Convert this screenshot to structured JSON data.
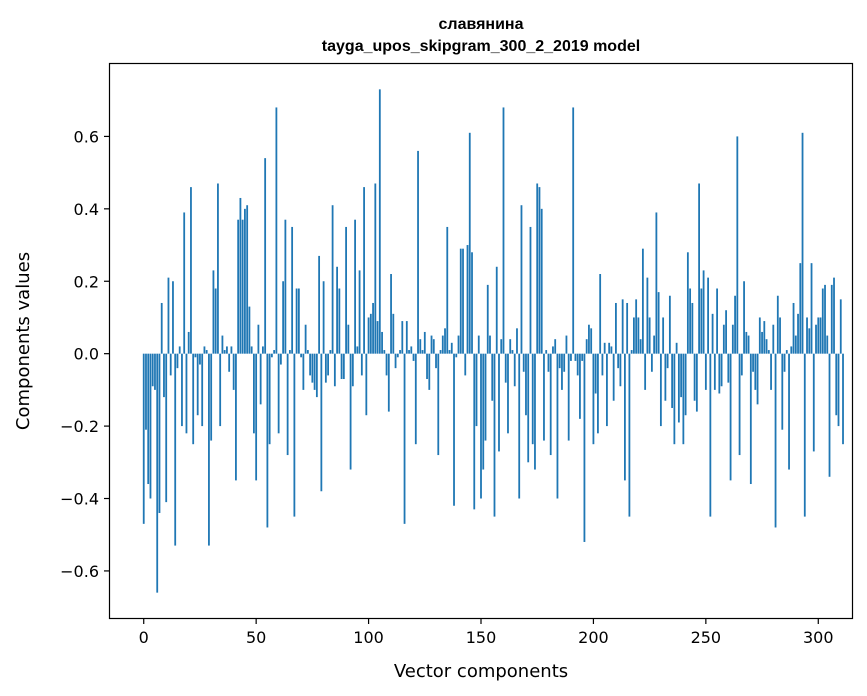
{
  "chart_data": {
    "type": "bar",
    "title_line1": "славянина",
    "title_line2": "tayga_upos_skipgram_300_2_2019 model",
    "xlabel": "Vector components",
    "ylabel": "Components values",
    "xlim": [
      -15,
      315
    ],
    "ylim": [
      -0.73,
      0.8
    ],
    "xticks": [
      0,
      50,
      100,
      150,
      200,
      250,
      300
    ],
    "xtick_labels": [
      "0",
      "50",
      "100",
      "150",
      "200",
      "250",
      "300"
    ],
    "yticks": [
      -0.6,
      -0.4,
      -0.2,
      0.0,
      0.2,
      0.4,
      0.6
    ],
    "ytick_labels": [
      "−0.6",
      "−0.4",
      "−0.2",
      "0.0",
      "0.2",
      "0.4",
      "0.6"
    ],
    "bar_color": "#1f77b4",
    "values": [
      -0.47,
      -0.21,
      -0.36,
      -0.4,
      -0.09,
      -0.1,
      -0.66,
      -0.44,
      0.14,
      -0.12,
      -0.41,
      0.21,
      -0.06,
      0.2,
      -0.53,
      -0.04,
      0.02,
      -0.2,
      0.39,
      -0.22,
      0.06,
      0.46,
      -0.25,
      -0.01,
      -0.17,
      -0.03,
      -0.2,
      0.02,
      0.01,
      -0.53,
      -0.24,
      0.23,
      0.18,
      0.47,
      -0.2,
      0.05,
      0.01,
      0.02,
      -0.05,
      0.02,
      -0.1,
      -0.35,
      0.37,
      0.43,
      0.37,
      0.4,
      0.41,
      0.13,
      0.02,
      -0.22,
      -0.35,
      0.08,
      -0.14,
      0.02,
      0.54,
      -0.48,
      -0.25,
      -0.01,
      0.01,
      0.68,
      -0.22,
      -0.03,
      0.2,
      0.37,
      -0.28,
      0.01,
      0.35,
      -0.45,
      0.18,
      0.18,
      -0.01,
      -0.1,
      0.08,
      0.01,
      -0.06,
      -0.08,
      -0.1,
      -0.12,
      0.27,
      -0.38,
      0.2,
      -0.08,
      -0.06,
      0.01,
      0.41,
      -0.09,
      0.24,
      0.18,
      -0.07,
      -0.07,
      0.35,
      0.08,
      -0.32,
      -0.09,
      0.37,
      0.02,
      0.23,
      -0.06,
      0.46,
      -0.17,
      0.1,
      0.11,
      0.14,
      0.47,
      0.09,
      0.73,
      0.06,
      0.01,
      -0.06,
      -0.16,
      0.22,
      0.11,
      -0.04,
      -0.01,
      0.01,
      0.09,
      -0.47,
      0.09,
      0.01,
      0.02,
      -0.02,
      -0.25,
      0.56,
      0.04,
      0.01,
      0.06,
      -0.07,
      -0.1,
      0.05,
      0.04,
      -0.04,
      -0.28,
      0.01,
      0.05,
      0.07,
      0.35,
      0.01,
      0.03,
      -0.42,
      -0.01,
      0.05,
      0.29,
      0.29,
      -0.06,
      0.3,
      0.61,
      0.28,
      -0.43,
      -0.2,
      0.05,
      -0.4,
      -0.32,
      -0.24,
      0.19,
      0.05,
      -0.13,
      -0.45,
      0.24,
      -0.27,
      0.04,
      0.68,
      -0.08,
      -0.22,
      0.04,
      0.01,
      -0.09,
      0.07,
      -0.4,
      0.41,
      -0.05,
      -0.17,
      -0.3,
      0.35,
      -0.25,
      -0.32,
      0.47,
      0.46,
      0.4,
      -0.24,
      0.01,
      -0.05,
      -0.28,
      0.02,
      0.04,
      -0.4,
      -0.04,
      -0.1,
      -0.05,
      0.05,
      -0.24,
      -0.02,
      0.68,
      -0.02,
      -0.06,
      -0.18,
      -0.02,
      -0.52,
      0.04,
      0.08,
      0.07,
      -0.25,
      -0.11,
      -0.22,
      0.22,
      -0.06,
      0.03,
      -0.2,
      0.03,
      0.02,
      -0.13,
      0.14,
      -0.04,
      -0.09,
      0.15,
      -0.35,
      0.14,
      -0.45,
      0.01,
      0.1,
      0.15,
      0.1,
      0.04,
      0.29,
      -0.1,
      0.21,
      0.1,
      -0.05,
      0.05,
      0.39,
      0.17,
      -0.2,
      0.1,
      -0.13,
      -0.04,
      0.16,
      -0.15,
      -0.25,
      0.03,
      -0.19,
      -0.12,
      -0.25,
      -0.17,
      0.28,
      0.18,
      0.14,
      -0.13,
      -0.16,
      0.47,
      0.18,
      0.23,
      -0.1,
      0.21,
      -0.45,
      0.11,
      -0.1,
      0.18,
      -0.11,
      -0.09,
      0.08,
      0.12,
      -0.08,
      -0.35,
      0.08,
      0.16,
      0.6,
      -0.28,
      -0.06,
      0.2,
      0.06,
      0.05,
      -0.36,
      -0.05,
      -0.1,
      -0.14,
      0.1,
      0.06,
      0.09,
      0.04,
      0.01,
      -0.1,
      0.08,
      -0.48,
      0.16,
      0.1,
      -0.21,
      -0.05,
      0.01,
      -0.32,
      0.02,
      0.14,
      0.05,
      0.11,
      0.25,
      0.61,
      -0.45,
      0.1,
      0.07,
      0.25,
      -0.27,
      0.08,
      0.1,
      0.1,
      0.18,
      0.19,
      0.05,
      -0.34,
      0.19,
      0.21,
      -0.17,
      -0.2,
      0.15,
      -0.25
    ]
  }
}
